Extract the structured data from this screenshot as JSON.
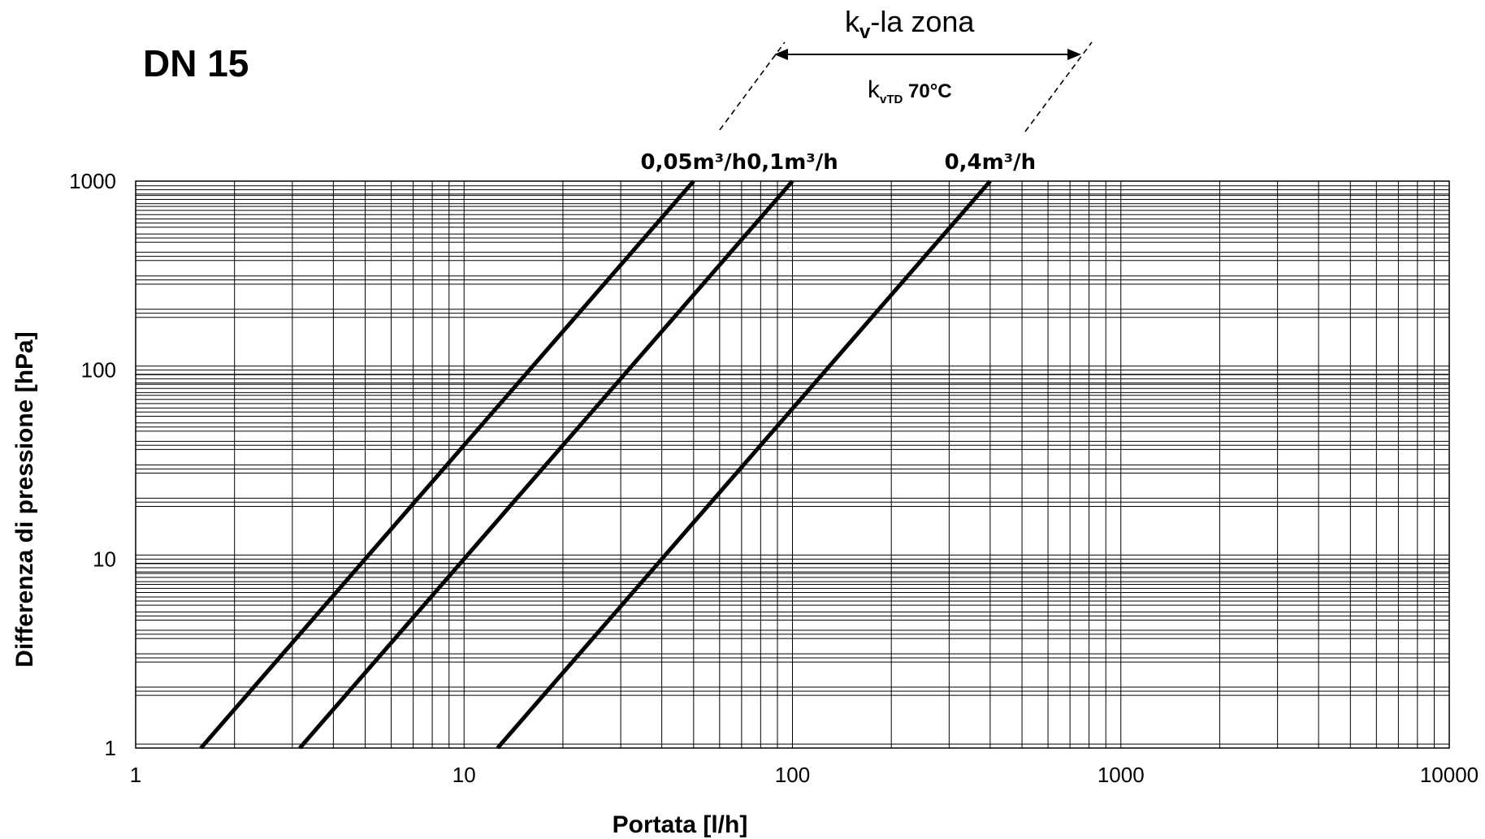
{
  "chart_data": {
    "type": "line",
    "title": "DN 15",
    "xlabel": "Portata [l/h]",
    "ylabel": "Differenza di pressione [hPa]",
    "xscale": "log",
    "yscale": "log",
    "xlim": [
      1,
      10000
    ],
    "ylim": [
      1,
      1000
    ],
    "x_ticks": [
      "1",
      "10",
      "100",
      "1000",
      "10000"
    ],
    "y_ticks": [
      "1",
      "10",
      "100",
      "1000"
    ],
    "grid": true,
    "series": [
      {
        "name": "0,05m³/h",
        "kv_m3h": 0.05,
        "points": [
          [
            1.58,
            1
          ],
          [
            50,
            1000
          ]
        ]
      },
      {
        "name": "0,1m³/h",
        "kv_m3h": 0.1,
        "points": [
          [
            3.16,
            1
          ],
          [
            100,
            1000
          ]
        ]
      },
      {
        "name": "0,4m³/h",
        "kv_m3h": 0.4,
        "points": [
          [
            12.65,
            1
          ],
          [
            400,
            1000
          ]
        ]
      }
    ],
    "annotations": {
      "zone_label_main": "k",
      "zone_label_main_sub": "v",
      "zone_label_main_rest": "-la zona",
      "zone_label_second": "k",
      "zone_label_second_sub": "vTD",
      "zone_label_second_rest": " 70°C"
    }
  }
}
